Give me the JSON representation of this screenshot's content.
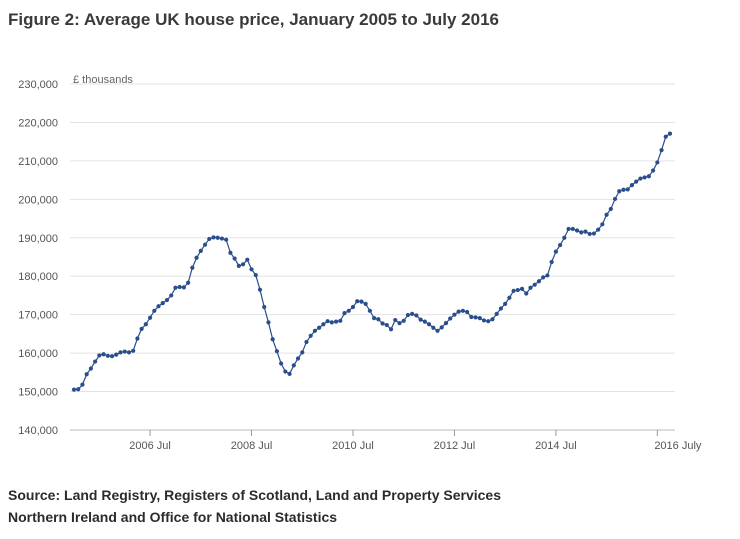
{
  "title": "Figure 2: Average UK house price, January 2005 to July 2016",
  "source": "Source: Land Registry, Registers of Scotland, Land and Property Services Northern Ireland and Office for National Statistics",
  "chart_data": {
    "type": "line",
    "unit_label": "£ thousands",
    "ylim": [
      140000,
      230000
    ],
    "y_ticks": [
      140000,
      150000,
      160000,
      170000,
      180000,
      190000,
      200000,
      210000,
      220000,
      230000
    ],
    "y_tick_labels": [
      "140,000",
      "150,000",
      "160,000",
      "170,000",
      "180,000",
      "190,000",
      "200,000",
      "210,000",
      "220,000",
      "230,000"
    ],
    "x_ticks": [
      18,
      42,
      66,
      90,
      114,
      138
    ],
    "x_tick_labels": [
      "2006 Jul",
      "2008 Jul",
      "2010 Jul",
      "2012 Jul",
      "2014 Jul",
      "2016 July"
    ],
    "x_start": "2005 Jan",
    "x_end": "2016 Jul",
    "grid": true,
    "color": "#2a4e8c",
    "series": [
      {
        "values": [
          150500,
          150600,
          151800,
          154500,
          156000,
          157800,
          159400,
          159700,
          159300,
          159200,
          159600,
          160200,
          160400,
          160200,
          160600,
          163800,
          166300,
          167500,
          169200,
          171000,
          172200,
          173000,
          173800,
          175000,
          177000,
          177200,
          177100,
          178300,
          182200,
          184800,
          186600,
          188200,
          189700,
          190100,
          190000,
          189800,
          189500,
          186100,
          184600,
          182700,
          183100,
          184300,
          181800,
          180300,
          176500,
          172000,
          168000,
          163600,
          160500,
          157300,
          155200,
          154600,
          156800,
          158600,
          160200,
          162900,
          164500,
          165800,
          166600,
          167500,
          168300,
          168000,
          168200,
          168400,
          170400,
          171000,
          172000,
          173500,
          173400,
          172800,
          171000,
          169100,
          168800,
          167700,
          167300,
          166200,
          168600,
          167800,
          168400,
          169900,
          170200,
          169800,
          168700,
          168200,
          167500,
          166600,
          165800,
          166700,
          167800,
          169000,
          170000,
          170800,
          171000,
          170700,
          169400,
          169300,
          169100,
          168500,
          168300,
          168800,
          170200,
          171600,
          172800,
          174400,
          176200,
          176400,
          176700,
          175500,
          177000,
          177800,
          178700,
          179700,
          180200,
          183700,
          186400,
          188100,
          190000,
          192300,
          192300,
          191900,
          191400,
          191600,
          191000,
          191100,
          192100,
          193500,
          196000,
          197500,
          200100,
          202100,
          202500,
          202600,
          203700,
          204600,
          205400,
          205700,
          206000,
          207500,
          209600,
          212800,
          216300,
          217100
        ]
      }
    ]
  }
}
